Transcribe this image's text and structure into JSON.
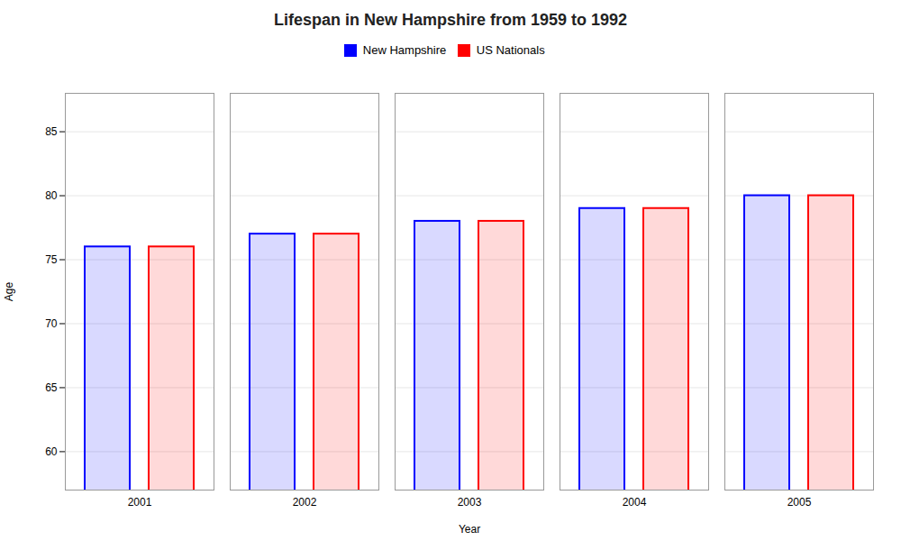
{
  "chart_data": {
    "type": "bar",
    "title": "Lifespan in New Hampshire from 1959 to 1992",
    "xlabel": "Year",
    "ylabel": "Age",
    "categories": [
      "2001",
      "2002",
      "2003",
      "2004",
      "2005"
    ],
    "series": [
      {
        "name": "New Hampshire",
        "color": "#0000ff",
        "values": [
          76,
          77,
          78,
          79,
          80
        ]
      },
      {
        "name": "US Nationals",
        "color": "#ff0000",
        "values": [
          76,
          77,
          78,
          79,
          80
        ]
      }
    ],
    "ylim": [
      57,
      88
    ],
    "yticks": [
      60,
      65,
      70,
      75,
      80,
      85
    ],
    "grid": true,
    "legend": "top"
  }
}
